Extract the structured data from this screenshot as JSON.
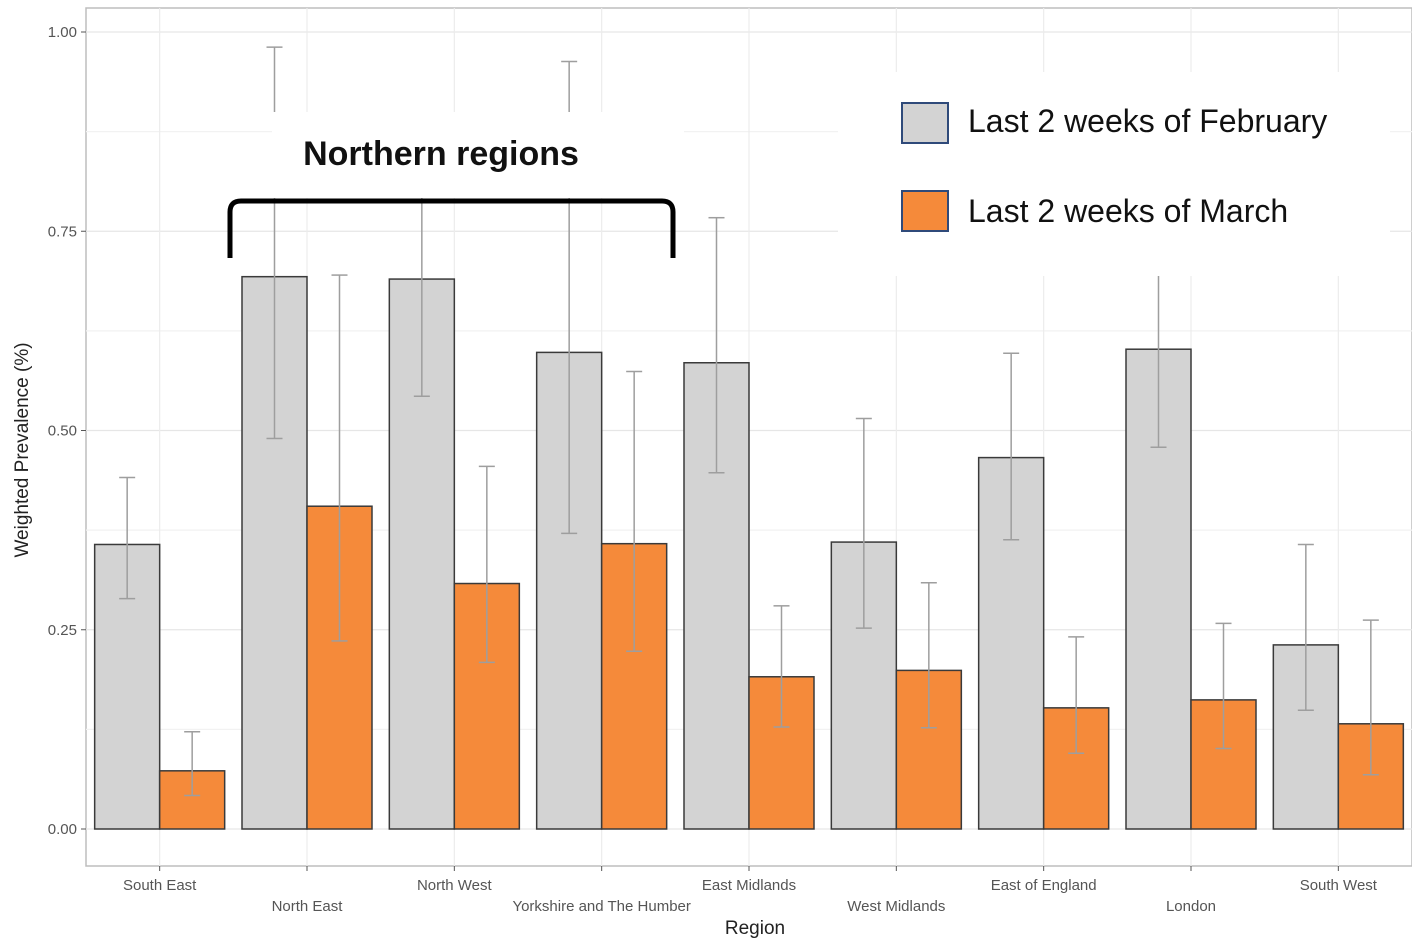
{
  "chart_data": {
    "type": "bar",
    "xlabel": "Region",
    "ylabel": "Weighted Prevalence (%)",
    "ylim": [
      0,
      1.03
    ],
    "yticks": [
      "0.00",
      "0.25",
      "0.50",
      "0.75",
      "1.00"
    ],
    "grid": true,
    "legend_position": "top-right",
    "categories": [
      "South East",
      "North East",
      "North West",
      "Yorkshire and The Humber",
      "East Midlands",
      "West Midlands",
      "East of England",
      "London",
      "South West"
    ],
    "series": [
      {
        "name": "Last 2 weeks of February",
        "color": "#d3d3d3",
        "values": [
          0.357,
          0.693,
          0.69,
          0.598,
          0.585,
          0.36,
          0.466,
          0.602,
          0.231
        ],
        "ci_low": [
          0.289,
          0.49,
          0.543,
          0.371,
          0.447,
          0.252,
          0.363,
          0.479,
          0.149
        ],
        "ci_high": [
          0.441,
          0.981,
          0.81,
          0.963,
          0.767,
          0.515,
          0.597,
          0.695,
          0.357
        ]
      },
      {
        "name": "Last 2 weeks of March",
        "color": "#f58a3a",
        "values": [
          0.073,
          0.405,
          0.308,
          0.358,
          0.191,
          0.199,
          0.152,
          0.162,
          0.132
        ],
        "ci_low": [
          0.042,
          0.236,
          0.209,
          0.223,
          0.128,
          0.127,
          0.095,
          0.101,
          0.068
        ],
        "ci_high": [
          0.122,
          0.695,
          0.455,
          0.574,
          0.28,
          0.309,
          0.241,
          0.258,
          0.262
        ]
      }
    ],
    "annotation": {
      "label": "Northern regions",
      "span": [
        "North East",
        "Yorkshire and The Humber"
      ]
    }
  }
}
